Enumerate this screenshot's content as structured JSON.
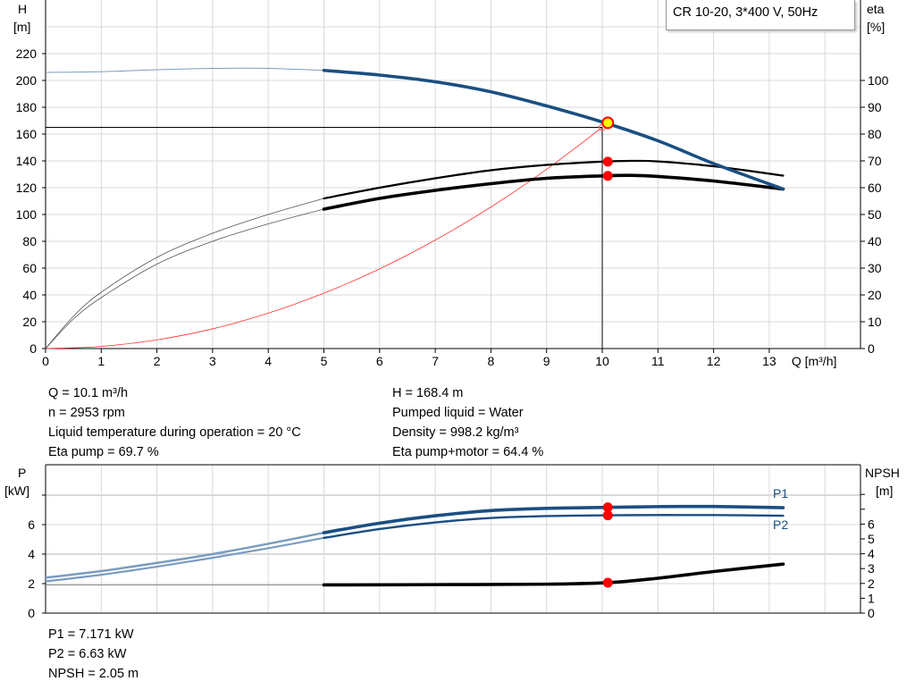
{
  "chart_data": [
    {
      "type": "line",
      "title": "CR 10-20, 3*400 V, 50Hz",
      "xlabel": "Q [m³/h]",
      "ylabel_left": {
        "name": "H",
        "unit": "[m]"
      },
      "ylabel_right": {
        "name": "eta",
        "unit": "[%]"
      },
      "xlim": [
        0,
        14.6
      ],
      "ylim_left": [
        0,
        260
      ],
      "ylim_right": [
        0,
        100
      ],
      "x_ticks": [
        "0",
        "1",
        "2",
        "3",
        "4",
        "5",
        "6",
        "7",
        "8",
        "9",
        "10",
        "11",
        "12",
        "13"
      ],
      "y_ticks_left": [
        "0",
        "20",
        "40",
        "60",
        "80",
        "100",
        "120",
        "140",
        "160",
        "180",
        "200",
        "220"
      ],
      "y_ticks_right": [
        "0",
        "10",
        "20",
        "30",
        "40",
        "50",
        "60",
        "70",
        "80",
        "90",
        "100"
      ],
      "grid": true,
      "series": [
        {
          "id": "head",
          "axis": "left",
          "color": "#1a4f82",
          "x": [
            0,
            1,
            2,
            3,
            4,
            5,
            6,
            7,
            8,
            9,
            10,
            11,
            12,
            13.25
          ],
          "y": [
            206,
            206.5,
            208,
            209,
            209,
            207.5,
            204,
            199,
            191.5,
            181,
            169,
            155,
            138,
            119
          ]
        },
        {
          "id": "eta-pump",
          "axis": "right",
          "color": "#000000",
          "x": [
            0,
            0.5,
            1,
            2,
            3,
            4,
            5,
            6,
            7,
            8,
            9,
            10,
            10.5,
            11,
            12,
            13.25
          ],
          "y": [
            0,
            12,
            21,
            34,
            43,
            50,
            56,
            60,
            63.5,
            66.5,
            68.5,
            69.7,
            70,
            69.8,
            68,
            64.5
          ]
        },
        {
          "id": "eta-pump-motor",
          "axis": "right",
          "color": "#000000",
          "x": [
            0,
            0.5,
            1,
            2,
            3,
            4,
            5,
            6,
            7,
            8,
            9,
            10,
            10.5,
            11,
            12,
            13.25
          ],
          "y": [
            0,
            11,
            19,
            31.5,
            40,
            46.5,
            52,
            56,
            59,
            61.5,
            63.5,
            64.4,
            64.6,
            64.2,
            62.5,
            59.5
          ]
        },
        {
          "id": "system-curve",
          "axis": "left",
          "color": "#ff3030",
          "x": [
            0,
            1,
            2,
            3,
            4,
            5,
            6,
            7,
            8,
            9,
            10
          ],
          "y": [
            0,
            1.6,
            6.5,
            14.7,
            26.4,
            41.3,
            59.4,
            80.9,
            105.6,
            133.7,
            165
          ]
        }
      ],
      "operating_point": {
        "q": 10.1,
        "h": 168.4,
        "eta_pump": 69.7,
        "eta_pump_motor": 64.4
      },
      "duty_point": {
        "q": 10,
        "h": 165
      }
    },
    {
      "type": "line",
      "xlabel": "",
      "ylabel_left": {
        "name": "P",
        "unit": "[kW]"
      },
      "ylabel_right": {
        "name": "NPSH",
        "unit": "[m]"
      },
      "xlim": [
        0,
        14.6
      ],
      "ylim_left": [
        0,
        10
      ],
      "ylim_right": [
        0,
        10
      ],
      "y_ticks_left": [
        "0",
        "2",
        "4",
        "6"
      ],
      "y_ticks_right": [
        "0",
        "1",
        "2",
        "3",
        "4",
        "5",
        "6"
      ],
      "grid": true,
      "series": [
        {
          "id": "p1",
          "name": "P1",
          "axis": "left",
          "color": "#1a4f82",
          "x": [
            0,
            1,
            2,
            3,
            4,
            5,
            6,
            7,
            8,
            9,
            10.1,
            11,
            12,
            13.25
          ],
          "y": [
            2.4,
            2.85,
            3.4,
            4.0,
            4.7,
            5.45,
            6.1,
            6.6,
            6.95,
            7.1,
            7.171,
            7.22,
            7.23,
            7.15
          ]
        },
        {
          "id": "p2",
          "name": "P2",
          "axis": "left",
          "color": "#1a4f82",
          "x": [
            0,
            1,
            2,
            3,
            4,
            5,
            6,
            7,
            8,
            9,
            10.1,
            11,
            12,
            13.25
          ],
          "y": [
            2.15,
            2.6,
            3.15,
            3.75,
            4.4,
            5.1,
            5.7,
            6.15,
            6.45,
            6.58,
            6.63,
            6.65,
            6.65,
            6.6
          ]
        },
        {
          "id": "npsh",
          "axis": "right",
          "color": "#000000",
          "x": [
            0,
            2,
            5,
            7,
            9,
            10.1,
            11,
            12,
            13.25
          ],
          "y": [
            1.9,
            1.9,
            1.9,
            1.92,
            1.95,
            2.05,
            2.35,
            2.8,
            3.3
          ]
        }
      ],
      "operating_point": {
        "q": 10.1,
        "p1": 7.171,
        "p2": 6.63,
        "npsh": 2.05
      }
    }
  ],
  "info_top_left": [
    "Q = 10.1 m³/h",
    "n = 2953 rpm",
    "Liquid temperature during operation = 20 °C",
    "Eta pump = 69.7 %"
  ],
  "info_top_right": [
    "H = 168.4 m",
    "Pumped liquid = Water",
    "Density = 998.2 kg/m³",
    "Eta pump+motor = 64.4 %"
  ],
  "info_bottom": [
    "P1 = 7.171 kW",
    "P2 = 6.63 kW",
    "NPSH = 2.05 m"
  ],
  "colors": {
    "head": "#1a4f82",
    "operating_point": "#ffff00",
    "marker": "#ff0000",
    "grid": "#d9d9d9"
  }
}
